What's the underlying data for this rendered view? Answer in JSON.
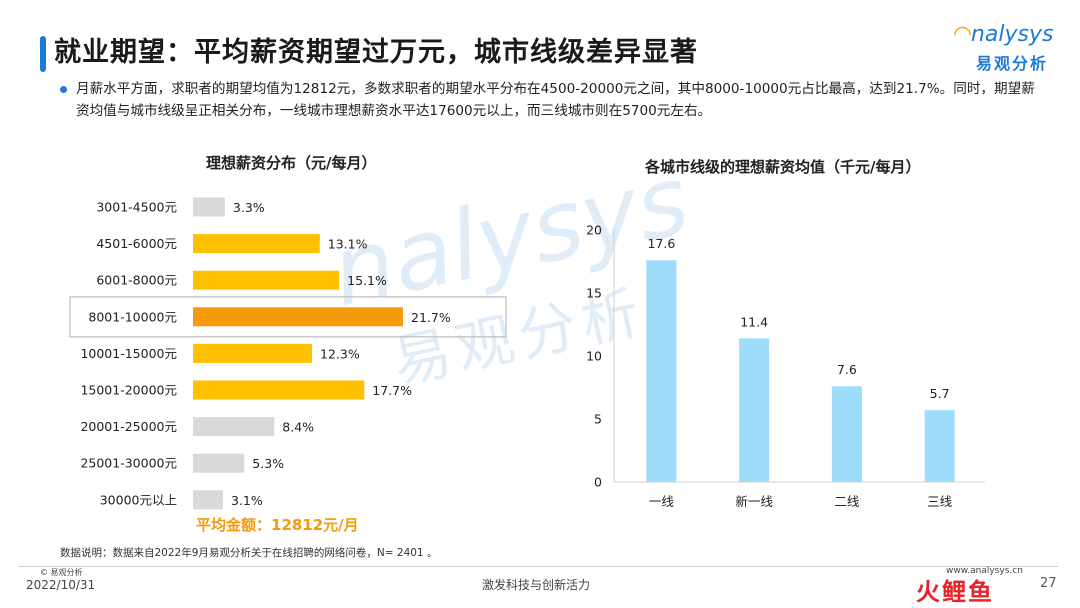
{
  "header": {
    "title": "就业期望：平均薪资期望过万元，城市线级差异显著",
    "logo_en": "nalysys",
    "logo_cn": "易观分析"
  },
  "summary": {
    "text": "月薪水平方面，求职者的期望均值为12812元，多数求职者的期望水平分布在4500-20000元之间，其中8000-10000元占比最高，达到21.7%。同时，期望薪资均值与城市线级呈正相关分布，一线城市理想薪资水平达17600元以上，而三线城市则在5700元左右。"
  },
  "watermark": {
    "en": "nalysys",
    "cn": "易观分析"
  },
  "chart_data": [
    {
      "type": "bar",
      "orientation": "horizontal",
      "title": "理想薪资分布（元/每月）",
      "categories": [
        "3001-4500元",
        "4501-6000元",
        "6001-8000元",
        "8001-10000元",
        "10001-15000元",
        "15001-20000元",
        "20001-25000元",
        "25001-30000元",
        "30000元以上"
      ],
      "values": [
        3.3,
        13.1,
        15.1,
        21.7,
        12.3,
        17.7,
        8.4,
        5.3,
        3.1
      ],
      "labels": [
        "3.3%",
        "13.1%",
        "15.1%",
        "21.7%",
        "12.3%",
        "17.7%",
        "8.4%",
        "5.3%",
        "3.1%"
      ],
      "colors": [
        "#d9d9d9",
        "#ffc000",
        "#ffc000",
        "#f59a0b",
        "#ffc000",
        "#ffc000",
        "#d9d9d9",
        "#d9d9d9",
        "#d9d9d9"
      ],
      "highlight_index": 3,
      "annotation": "平均金额：12812元/月"
    },
    {
      "type": "bar",
      "title": "各城市线级的理想薪资均值（千元/每月）",
      "categories": [
        "一线",
        "新一线",
        "二线",
        "三线"
      ],
      "values": [
        17.6,
        11.4,
        7.6,
        5.7
      ],
      "ylim": [
        0,
        20
      ],
      "yticks": [
        0,
        5,
        10,
        15,
        20
      ],
      "color": "#9edcfb"
    }
  ],
  "footer": {
    "note": "数据说明：数据来自2022年9月易观分析关于在线招聘的网络问卷，N= 2401 。",
    "copyright": "© 易观分析",
    "date": "2022/10/31",
    "slogan": "激发科技与创新活力",
    "site": "www.analysys.cn",
    "page": "27",
    "deco": "火鲤鱼"
  }
}
